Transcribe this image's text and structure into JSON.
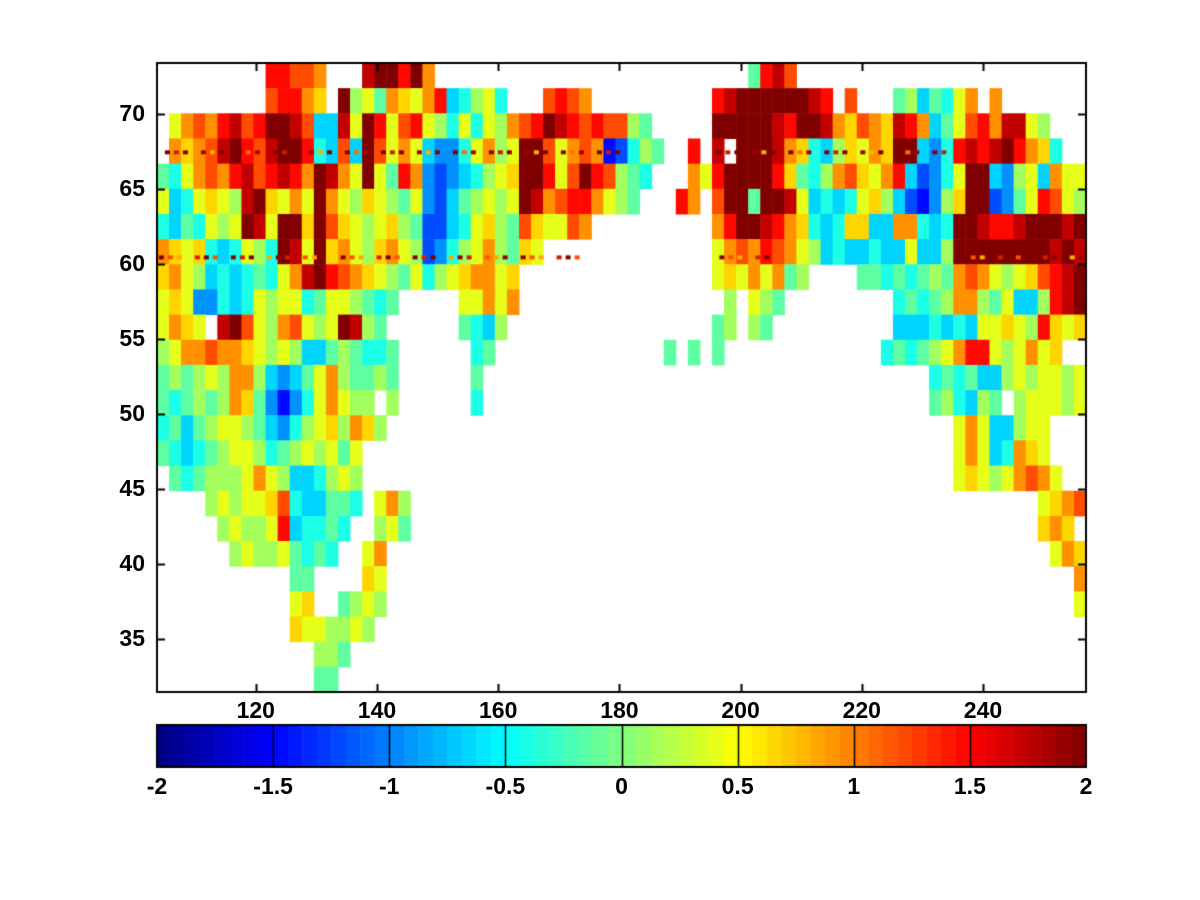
{
  "chart_data": {
    "type": "heatmap",
    "title": "",
    "xlabel": "",
    "ylabel": "",
    "x_axis": {
      "range": [
        103.7,
        257.0
      ],
      "ticks": [
        120,
        140,
        160,
        180,
        200,
        220,
        240
      ]
    },
    "y_axis": {
      "range": [
        31.5,
        73.4
      ],
      "ticks": [
        35,
        40,
        45,
        50,
        55,
        60,
        65,
        70
      ]
    },
    "value_range": [
      -2,
      2
    ],
    "colormap": "jet",
    "legend_position": "bottom-colorbar",
    "grid_lines": "off",
    "colorbar": {
      "orientation": "horizontal",
      "segments": 64,
      "tick_values": [
        -2,
        -1.5,
        -1,
        -0.5,
        0,
        0.5,
        1,
        1.5,
        2
      ],
      "tick_labels": [
        "-2",
        "-1.5",
        "-1",
        "-0.5",
        "0",
        "0.5",
        "1",
        "1.5",
        "2"
      ]
    },
    "grid": {
      "cols": 77,
      "rows": 25,
      "lon_start": 103.7,
      "lon_step": 1.991,
      "lat_start": 73.4,
      "lat_step": 1.677,
      "encoding": "hex digit 0-f maps linearly to value -2..+2 (jet colormap); '.' = no data (white ocean)",
      "cells": [
        ".........ddccb...effdfb..........................7dec........................",
        ".........cddba.f897ba9bd56896...cdcb..........deffffffed.c...785769b.b......",
        ".9bcbdecdffec55e9fd9cd9869698bcdfedcdcc87.....fffffedffebacbaedb579cdbee98...",
        ".babcefdceffd65c5fc9b954469b89ffc9bcb23687..d.e.fffeba658a9baff546dedefdba6..",
        "769bcbdecdedbfeb9f97db4345689affd9cfdc876...b9dffffda768bca9bd53469ff54895b99",
        "9569a98efa9b9fb98a987943578989febcddb987...db.cff7ffe956569a853248aff3479dc98",
        "6576989fe9ffafca989a8733569a87ca99cb..........bdffedba656aa55bb656ffeddefffef",
        "ba9a656986fe9fab98ab9834689b87a9..............9bcbdcb9856556559558ffffffffefe",
        "ab985656769befdcba9879689abb9a................9a9b9b78....77676787bcb989acdef",
        "9a944656989967998767.....99b9b.................8.987.........67678bb879558def",
        "9ba9.efc98bc989fe87......7658.................78.87..........555656599a98da9a",
        "89bbcbba989855787667......67..............7.7.7.............676789bdd989b9a",
        "787898bb854579b87787......7.....................................6767558989989a9",
        "767878ba742469b988.8......6.....................................786587 8999898",
        "67578998754689a8ba8...............................................9b955899...",
        "76567899867898979.................................................9b956ba9...",
        ".7678889b98556898.................................................9a989bcb9..",
        "....89899ac655776.9b8....................................................9abcffd9..",
        ".....89889d56676..897....................................................aba.cc9...",
        "......898897676..9b.......................................................9ba........",
        "...........77....a9.........................................................bb.......",
        "...........9a..7898.........................................................9dfb......",
        "...........a998898...........................................................9ca......",
        ".............887...............................................................976.....",
        ".............77..................................................................66....."
      ]
    },
    "dotted_rows": [
      {
        "lat": 67.45,
        "ranges": [
          [
            105.0,
            180.5
          ],
          [
            196.0,
            234.0
          ]
        ],
        "colors": [
          "#7f0000",
          "#c82000",
          "#7f0000",
          "#ff7000",
          "#a00000",
          "#ffb000"
        ]
      },
      {
        "lat": 60.45,
        "ranges": [
          [
            104.0,
            130.0
          ],
          [
            134.0,
            173.0
          ],
          [
            196.5,
            204.5
          ],
          [
            236.5,
            257.0
          ]
        ],
        "colors": [
          "#7f0000",
          "#ff5000",
          "#ffa800",
          "#8f0000",
          "#d02000"
        ]
      }
    ]
  },
  "colors": {
    "background": "#ffffff",
    "axis": "#000000",
    "tick_label": "#000000",
    "no_data": "#ffffff"
  }
}
